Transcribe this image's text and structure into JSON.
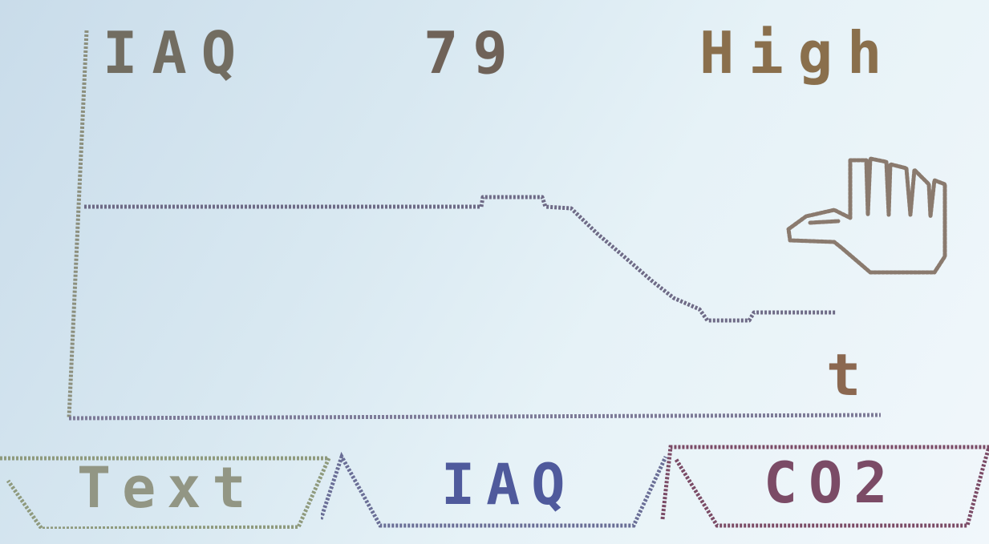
{
  "header": {
    "sensor_label": "IAQ",
    "sensor_value": "79",
    "sensor_level": "High"
  },
  "graph": {
    "x_axis_label": "t",
    "icon": "touch-hand-icon"
  },
  "tabs": [
    {
      "label": "Text",
      "selected": false
    },
    {
      "label": "IAQ",
      "selected": true
    },
    {
      "label": "CO2",
      "selected": false
    }
  ],
  "colors": {
    "screen_background": "#d8e8f1",
    "axis": "#8c8f7d",
    "trend_line": "#6e6a86",
    "text_header": "#726d61",
    "level_text": "#8a6f4c",
    "tab_active": "#4f5a9c",
    "tab_text": "#929684",
    "tab_co2": "#7b4b66"
  }
}
